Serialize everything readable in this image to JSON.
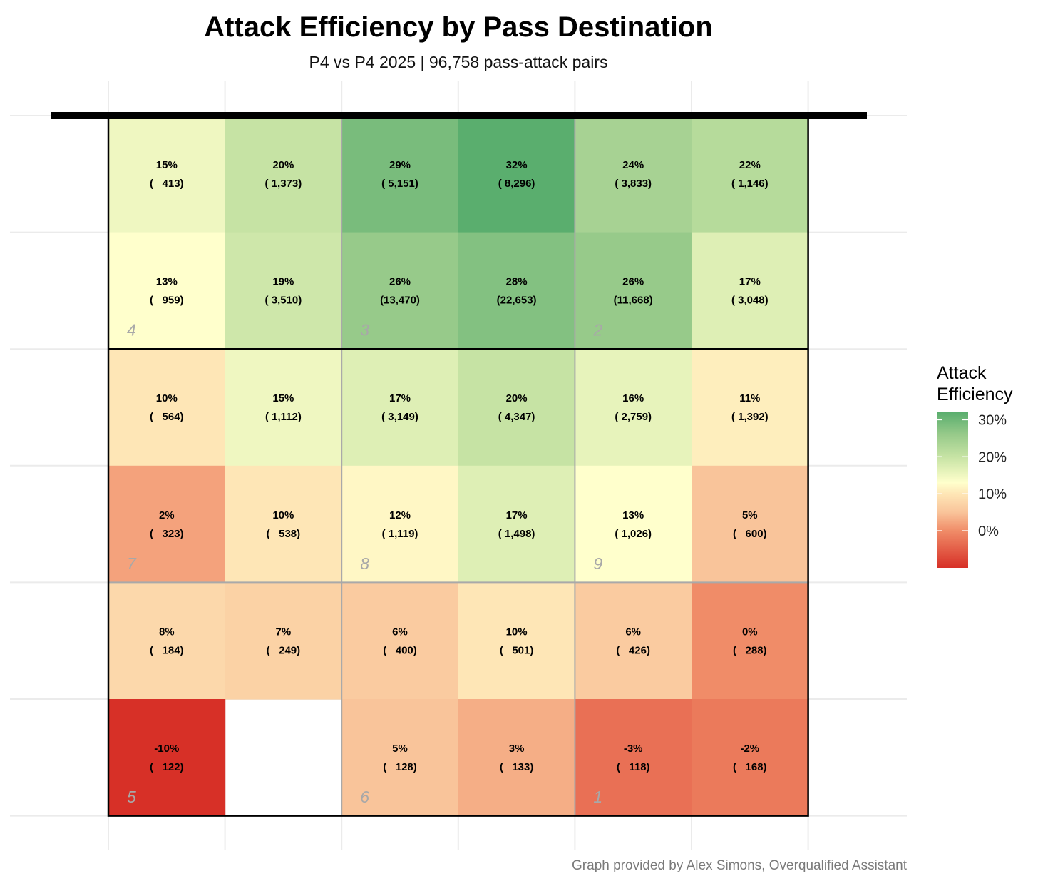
{
  "chart_data": {
    "type": "heatmap",
    "title": "Attack Efficiency by Pass Destination",
    "subtitle": "P4 vs P4 2025 | 96,758 pass-attack pairs",
    "caption": "Graph provided by Alex Simons, Overqualified Assistant",
    "rows": 6,
    "cols": 6,
    "cells": [
      [
        {
          "pct": "15%",
          "n": "(   413)",
          "v": 15
        },
        {
          "pct": "20%",
          "n": "( 1,373)",
          "v": 20
        },
        {
          "pct": "29%",
          "n": "( 5,151)",
          "v": 29
        },
        {
          "pct": "32%",
          "n": "( 8,296)",
          "v": 32
        },
        {
          "pct": "24%",
          "n": "( 3,833)",
          "v": 24
        },
        {
          "pct": "22%",
          "n": "( 1,146)",
          "v": 22
        }
      ],
      [
        {
          "pct": "13%",
          "n": "(   959)",
          "v": 13
        },
        {
          "pct": "19%",
          "n": "( 3,510)",
          "v": 19
        },
        {
          "pct": "26%",
          "n": "(13,470)",
          "v": 26
        },
        {
          "pct": "28%",
          "n": "(22,653)",
          "v": 28
        },
        {
          "pct": "26%",
          "n": "(11,668)",
          "v": 26
        },
        {
          "pct": "17%",
          "n": "( 3,048)",
          "v": 17
        }
      ],
      [
        {
          "pct": "10%",
          "n": "(   564)",
          "v": 10
        },
        {
          "pct": "15%",
          "n": "( 1,112)",
          "v": 15
        },
        {
          "pct": "17%",
          "n": "( 3,149)",
          "v": 17
        },
        {
          "pct": "20%",
          "n": "( 4,347)",
          "v": 20
        },
        {
          "pct": "16%",
          "n": "( 2,759)",
          "v": 16
        },
        {
          "pct": "11%",
          "n": "( 1,392)",
          "v": 11
        }
      ],
      [
        {
          "pct": "2%",
          "n": "(   323)",
          "v": 2
        },
        {
          "pct": "10%",
          "n": "(   538)",
          "v": 10
        },
        {
          "pct": "12%",
          "n": "( 1,119)",
          "v": 12
        },
        {
          "pct": "17%",
          "n": "( 1,498)",
          "v": 17
        },
        {
          "pct": "13%",
          "n": "( 1,026)",
          "v": 13
        },
        {
          "pct": "5%",
          "n": "(   600)",
          "v": 5
        }
      ],
      [
        {
          "pct": "8%",
          "n": "(   184)",
          "v": 8
        },
        {
          "pct": "7%",
          "n": "(   249)",
          "v": 7
        },
        {
          "pct": "6%",
          "n": "(   400)",
          "v": 6
        },
        {
          "pct": "10%",
          "n": "(   501)",
          "v": 10
        },
        {
          "pct": "6%",
          "n": "(   426)",
          "v": 6
        },
        {
          "pct": "0%",
          "n": "(   288)",
          "v": 0
        }
      ],
      [
        {
          "pct": "-10%",
          "n": "(   122)",
          "v": -10
        },
        null,
        {
          "pct": "5%",
          "n": "(   128)",
          "v": 5
        },
        {
          "pct": "3%",
          "n": "(   133)",
          "v": 3
        },
        {
          "pct": "-3%",
          "n": "(   118)",
          "v": -3
        },
        {
          "pct": "-2%",
          "n": "(   168)",
          "v": -2
        }
      ]
    ],
    "zones": [
      {
        "label": "4",
        "row": 1,
        "col": 0
      },
      {
        "label": "3",
        "row": 1,
        "col": 2
      },
      {
        "label": "2",
        "row": 1,
        "col": 4
      },
      {
        "label": "7",
        "row": 3,
        "col": 0
      },
      {
        "label": "8",
        "row": 3,
        "col": 2
      },
      {
        "label": "9",
        "row": 3,
        "col": 4
      },
      {
        "label": "5",
        "row": 5,
        "col": 0
      },
      {
        "label": "6",
        "row": 5,
        "col": 2
      },
      {
        "label": "1",
        "row": 5,
        "col": 4
      }
    ],
    "legend": {
      "title_lines": [
        "Attack",
        "Efficiency"
      ],
      "ticks": [
        {
          "value": 30,
          "label": "30%"
        },
        {
          "value": 20,
          "label": "20%"
        },
        {
          "value": 10,
          "label": "10%"
        },
        {
          "value": 0,
          "label": "0%"
        }
      ],
      "range": [
        -10,
        32
      ],
      "placement": "right"
    },
    "color_scale": {
      "stops": [
        {
          "value": -10,
          "color": "#d73027"
        },
        {
          "value": 0,
          "color": "#f08c68"
        },
        {
          "value": 5,
          "color": "#f9c49a"
        },
        {
          "value": 10,
          "color": "#fee6b6"
        },
        {
          "value": 13,
          "color": "#ffffcc"
        },
        {
          "value": 20,
          "color": "#c6e3a4"
        },
        {
          "value": 26,
          "color": "#97ca8a"
        },
        {
          "value": 32,
          "color": "#5aae6e"
        }
      ]
    }
  }
}
